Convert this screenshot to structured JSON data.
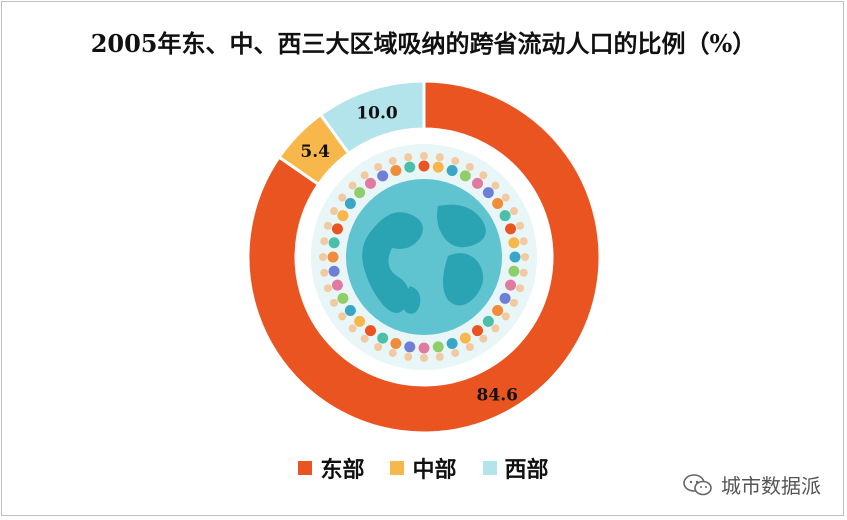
{
  "chart_data": {
    "type": "pie",
    "title": "2005年东、中、西三大区域吸纳的跨省流动人口的比例（%）",
    "slices": [
      {
        "label": "东部",
        "value": 84.6,
        "color": "#EA5421"
      },
      {
        "label": "中部",
        "value": 5.4,
        "color": "#F8B74A"
      },
      {
        "label": "西部",
        "value": 10.0,
        "color": "#B3E3EB"
      }
    ],
    "data_labels": [
      "84.6",
      "5.4",
      "10.0"
    ],
    "legend_placement": "bottom"
  },
  "watermark": {
    "text": "城市数据派",
    "icon": "wechat-icon"
  }
}
